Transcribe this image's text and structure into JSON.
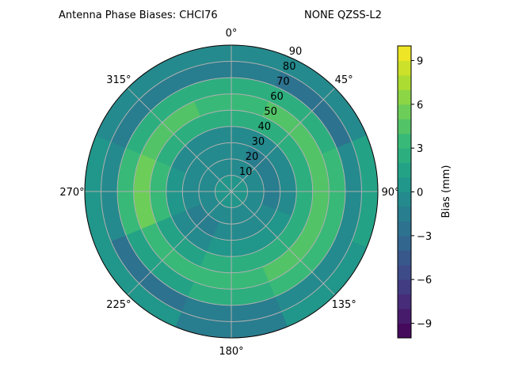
{
  "chart_data": {
    "type": "heatmap",
    "projection": "polar",
    "title": "Antenna Phase Biases: CHCI76",
    "subtitle": "NONE QZSS-L2",
    "theta_zero": "N",
    "theta_direction": "clockwise",
    "theta_tick_labels": [
      "0°",
      "45°",
      "90°",
      "135°",
      "180°",
      "225°",
      "270°",
      "315°"
    ],
    "radial_ticks": [
      10,
      20,
      30,
      40,
      50,
      60,
      70,
      80,
      90
    ],
    "radial_tick_labels": [
      "10",
      "20",
      "30",
      "40",
      "50",
      "60",
      "70",
      "80",
      "90"
    ],
    "rlim": [
      0,
      90
    ],
    "grid": true,
    "azimuth_sectors": [
      0,
      45,
      90,
      135,
      180,
      225,
      270,
      315
    ],
    "zenith_bins": [
      5,
      15,
      25,
      35,
      45,
      55,
      65,
      75,
      85
    ],
    "values_mm": [
      [
        0,
        -0.5,
        -1,
        -0.5,
        2,
        3.5,
        2,
        -2,
        -1
      ],
      [
        0,
        -1,
        -1.5,
        -1,
        2,
        4,
        2,
        -2.5,
        -1
      ],
      [
        0,
        -1,
        -1.5,
        -1,
        2,
        4,
        3,
        -1,
        1
      ],
      [
        0,
        -0.5,
        -1,
        0,
        2,
        4.5,
        3,
        -1,
        0
      ],
      [
        0,
        -0.5,
        -1,
        0,
        2,
        3.5,
        2,
        -2,
        -1.5
      ],
      [
        0,
        -0.5,
        -1.5,
        -1,
        1.5,
        3.5,
        1,
        -2.5,
        0
      ],
      [
        0,
        -0.5,
        -1,
        0,
        3,
        5.5,
        3,
        -1,
        0
      ],
      [
        0,
        -0.5,
        -1,
        -0.5,
        2.5,
        4.5,
        2,
        -2,
        -1
      ]
    ],
    "colorbar": {
      "label": "Bias (mm)",
      "range": [
        -10,
        10
      ],
      "levels_step": 1,
      "ticks": [
        -9,
        -6,
        -3,
        0,
        3,
        6,
        9
      ],
      "tick_labels": [
        "−9",
        "−6",
        "−3",
        "0",
        "3",
        "6",
        "9"
      ],
      "colormap": "viridis"
    }
  }
}
